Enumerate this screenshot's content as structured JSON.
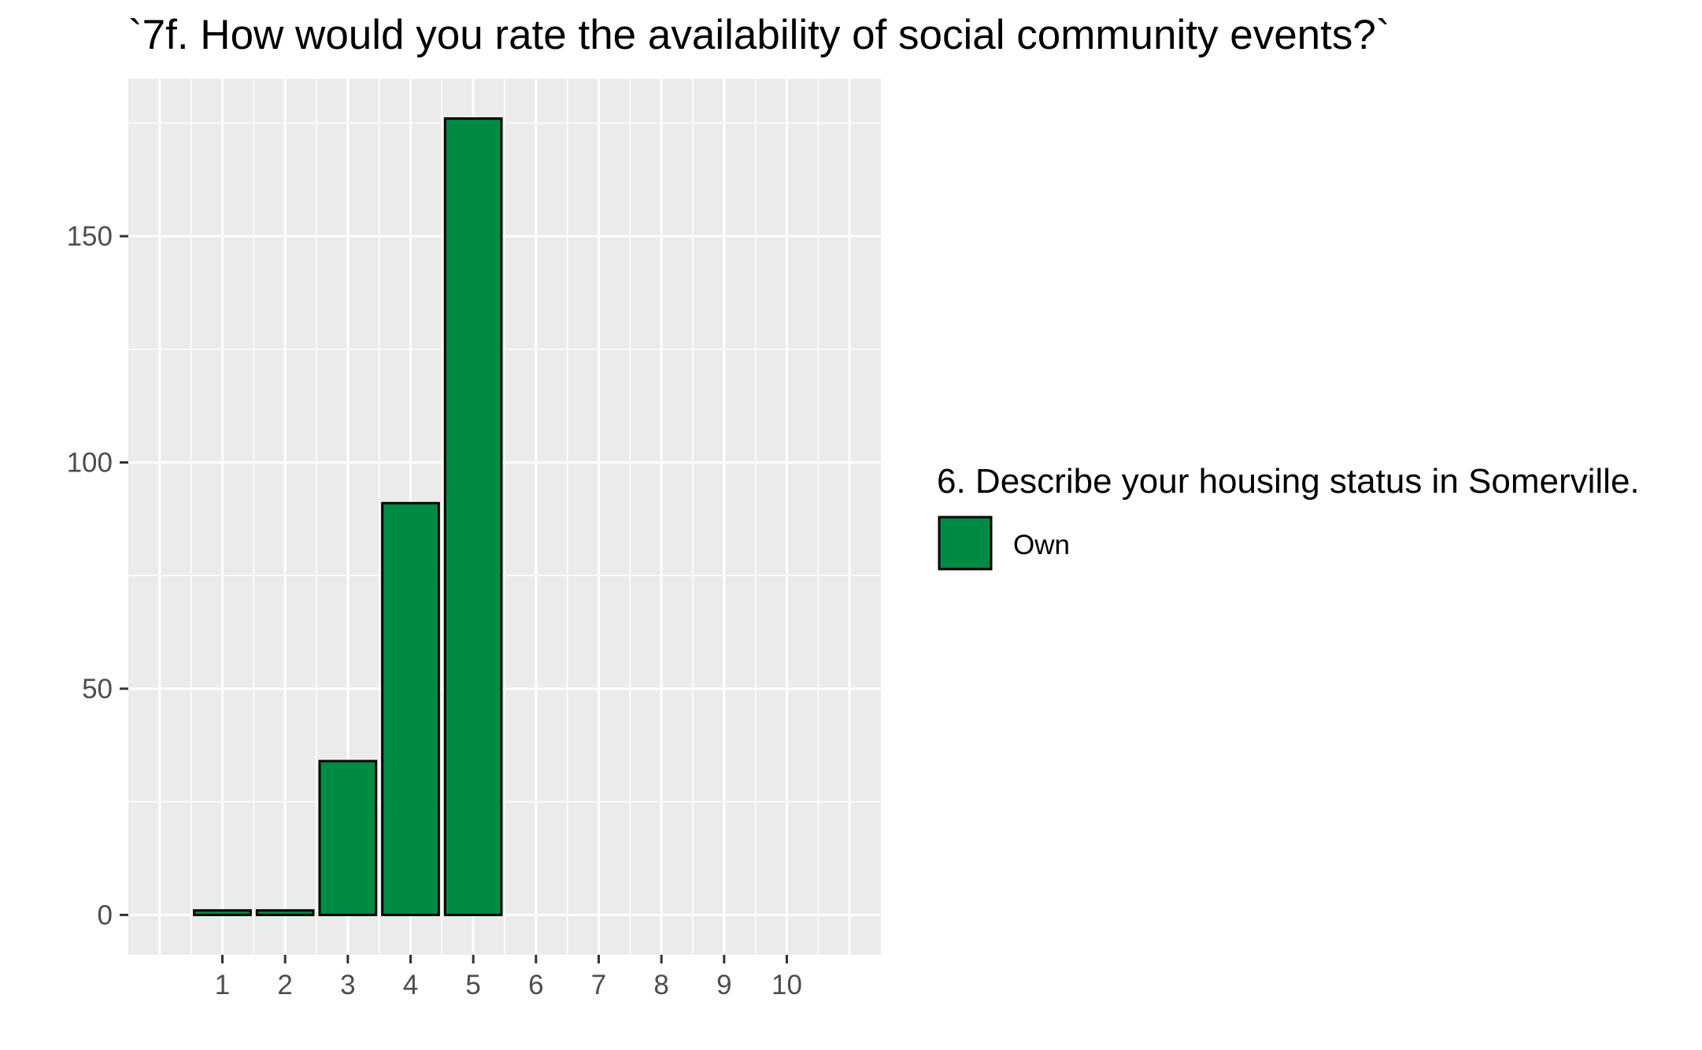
{
  "chart_data": {
    "type": "bar",
    "title": "`7f. How would you rate the availability of social community events?`",
    "xlabel": "",
    "ylabel": "",
    "categories": [
      "1",
      "2",
      "3",
      "4",
      "5",
      "6",
      "7",
      "8",
      "9",
      "10"
    ],
    "x_tick_labels": [
      "1",
      "2",
      "3",
      "4",
      "5",
      "6",
      "7",
      "8",
      "9",
      "10"
    ],
    "y_tick_labels": [
      "0",
      "50",
      "100",
      "150"
    ],
    "y_ticks": [
      0,
      50,
      100,
      150
    ],
    "ylim": [
      -8.8,
      184.8
    ],
    "xlim": [
      -0.5,
      11.5
    ],
    "grid": true,
    "legend_position": "right",
    "series": [
      {
        "name": "Own",
        "color": "#008B45",
        "x": [
          1,
          2,
          3,
          4,
          5
        ],
        "values": [
          1,
          1,
          34,
          91,
          176
        ]
      }
    ],
    "legend": {
      "title": "6. Describe your housing status in Somerville.",
      "items": [
        {
          "label": "Own",
          "color": "#008B45"
        }
      ]
    },
    "colors": {
      "panel_background": "#EBEBEB",
      "gridline": "#FFFFFF",
      "bar_outline": "#000000",
      "tick_text": "#4D4D4D"
    }
  }
}
